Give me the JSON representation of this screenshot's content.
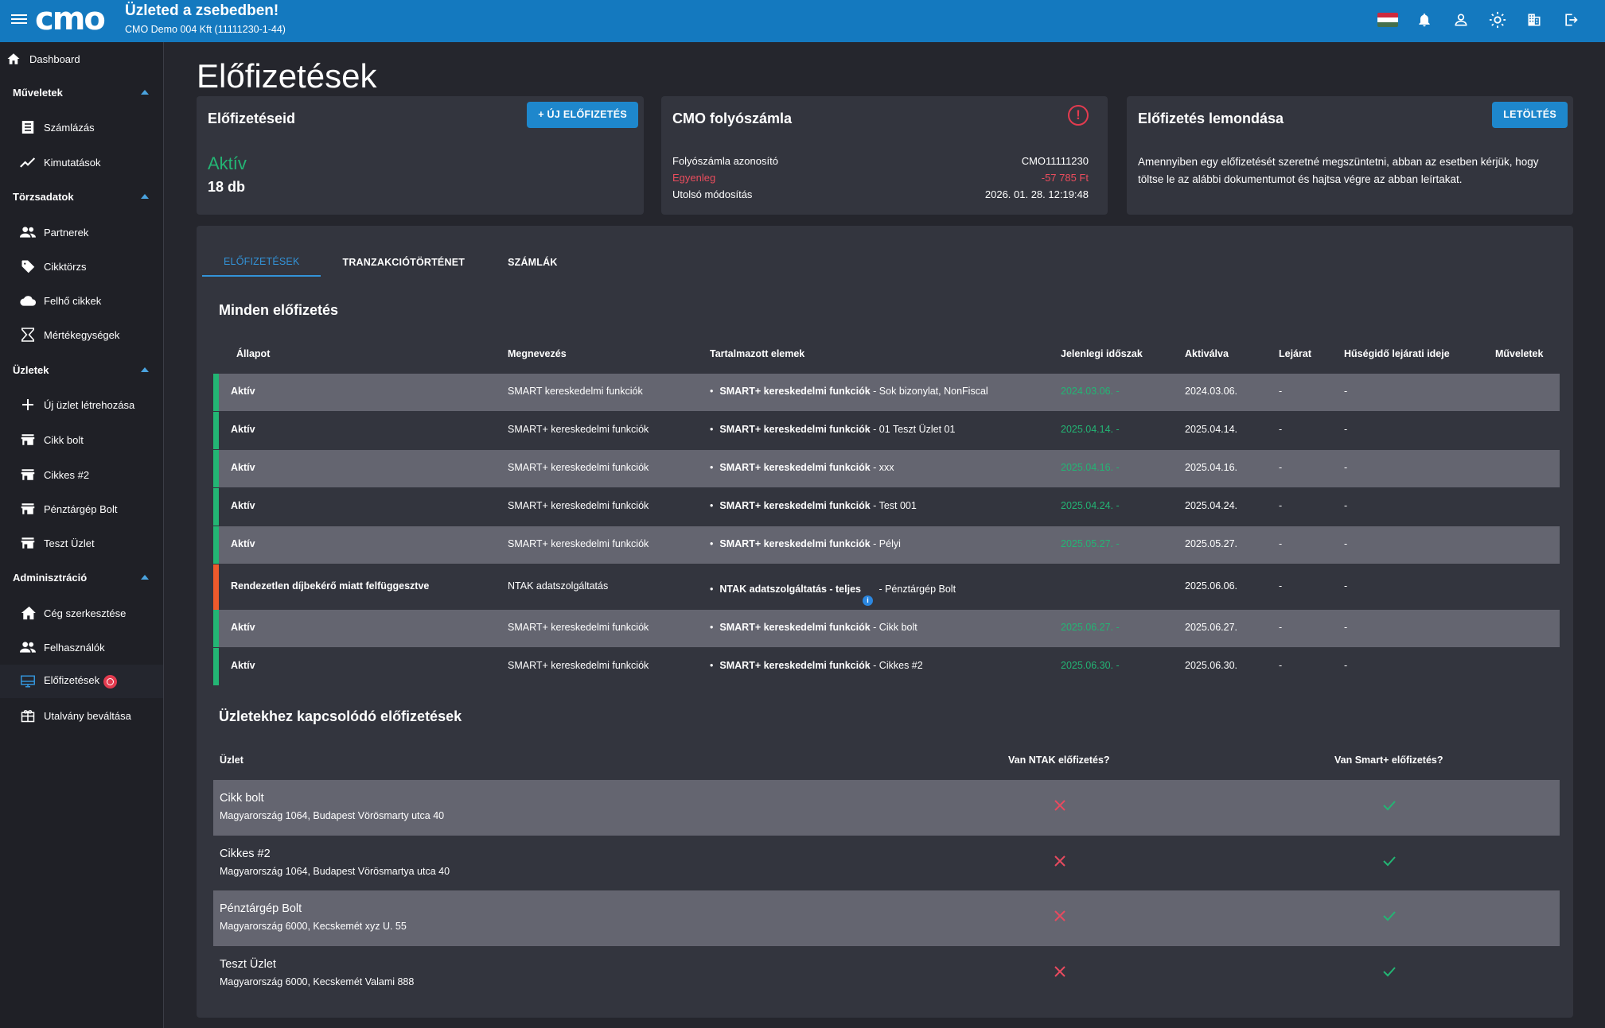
{
  "topbar": {
    "logo": "cmo",
    "title": "Üzleted a zsebedben!",
    "subtitle": "CMO Demo 004 Kft (11111230-1-44)"
  },
  "sidebar": {
    "dashboard": "Dashboard",
    "sections": [
      {
        "label": "Műveletek",
        "items": [
          "Számlázás",
          "Kimutatások"
        ]
      },
      {
        "label": "Törzsadatok",
        "items": [
          "Partnerek",
          "Cikktörzs",
          "Felhő cikkek",
          "Mértékegységek"
        ]
      },
      {
        "label": "Üzletek",
        "items": [
          "Új üzlet létrehozása",
          "Cikk bolt",
          "Cikkes #2",
          "Pénztárgép Bolt",
          "Teszt Üzlet"
        ]
      },
      {
        "label": "Adminisztráció",
        "items": [
          "Cég szerkesztése",
          "Felhasználók",
          "Előfizetések",
          "Utalvány beváltása"
        ]
      }
    ]
  },
  "page": {
    "title": "Előfizetések"
  },
  "cards": {
    "subscriptions": {
      "title": "Előfizetéseid",
      "button": "+ ÚJ ELŐFIZETÉS",
      "status": "Aktív",
      "count": "18 db"
    },
    "account": {
      "title": "CMO folyószámla",
      "warning": "!",
      "id_label": "Folyószámla azonosító",
      "id_value": "CMO11111230",
      "balance_label": "Egyenleg",
      "balance_value": "-57 785 Ft",
      "modified_label": "Utolsó módosítás",
      "modified_value": "2026. 01. 28. 12:19:48"
    },
    "cancel": {
      "title": "Előfizetés lemondása",
      "button": "LETÖLTÉS",
      "text": "Amennyiben egy előfizetését szeretné megszüntetni, abban az esetben kérjük, hogy töltse le az alábbi dokumentumot és hajtsa végre az abban leírtakat."
    }
  },
  "tabs": [
    "ELŐFIZETÉSEK",
    "TRANZAKCIÓTÖRTÉNET",
    "SZÁMLÁK"
  ],
  "subscriptions_table": {
    "title": "Minden előfizetés",
    "headers": [
      "Állapot",
      "Megnevezés",
      "Tartalmazott elemek",
      "Jelenlegi időszak",
      "Aktiválva",
      "Lejárat",
      "Hűségidő lejárati ideje",
      "Műveletek"
    ],
    "rows": [
      {
        "status": "Aktív",
        "name": "SMART kereskedelmi funkciók",
        "elem_bold": "SMART+ kereskedelmi funkciók",
        "elem_rest": " - Sok bizonylat, NonFiscal",
        "period": "2024.03.06. -",
        "activated": "2024.03.06.",
        "expiry": "-",
        "loyalty": "-"
      },
      {
        "status": "Aktív",
        "name": "SMART+ kereskedelmi funkciók",
        "elem_bold": "SMART+ kereskedelmi funkciók",
        "elem_rest": " - 01 Teszt Üzlet 01",
        "period": "2025.04.14. -",
        "activated": "2025.04.14.",
        "expiry": "-",
        "loyalty": "-"
      },
      {
        "status": "Aktív",
        "name": "SMART+ kereskedelmi funkciók",
        "elem_bold": "SMART+ kereskedelmi funkciók",
        "elem_rest": " - xxx",
        "period": "2025.04.16. -",
        "activated": "2025.04.16.",
        "expiry": "-",
        "loyalty": "-"
      },
      {
        "status": "Aktív",
        "name": "SMART+ kereskedelmi funkciók",
        "elem_bold": "SMART+ kereskedelmi funkciók",
        "elem_rest": " - Test 001",
        "period": "2025.04.24. -",
        "activated": "2025.04.24.",
        "expiry": "-",
        "loyalty": "-"
      },
      {
        "status": "Aktív",
        "name": "SMART+ kereskedelmi funkciók",
        "elem_bold": "SMART+ kereskedelmi funkciók",
        "elem_rest": " - Pélyi",
        "period": "2025.05.27. -",
        "activated": "2025.05.27.",
        "expiry": "-",
        "loyalty": "-"
      },
      {
        "status": "Rendezetlen díjbekérő miatt felfüggesztve",
        "name": "NTAK adatszolgáltatás",
        "elem_bold": "NTAK adatszolgáltatás - teljes",
        "elem_rest": " - Pénztárgép Bolt",
        "period": "",
        "activated": "2025.06.06.",
        "expiry": "-",
        "loyalty": "-"
      },
      {
        "status": "Aktív",
        "name": "SMART+ kereskedelmi funkciók",
        "elem_bold": "SMART+ kereskedelmi funkciók",
        "elem_rest": " - Cikk bolt",
        "period": "2025.06.27. -",
        "activated": "2025.06.27.",
        "expiry": "-",
        "loyalty": "-"
      },
      {
        "status": "Aktív",
        "name": "SMART+ kereskedelmi funkciók",
        "elem_bold": "SMART+ kereskedelmi funkciók",
        "elem_rest": " - Cikkes #2",
        "period": "2025.06.30. -",
        "activated": "2025.06.30.",
        "expiry": "-",
        "loyalty": "-"
      }
    ]
  },
  "stores_table": {
    "title": "Üzletekhez kapcsolódó előfizetések",
    "headers": [
      "Üzlet",
      "Van NTAK előfizetés?",
      "Van Smart+ előfizetés?"
    ],
    "rows": [
      {
        "name": "Cikk bolt",
        "address": "Magyarország 1064, Budapest Vörösmarty utca 40"
      },
      {
        "name": "Cikkes #2",
        "address": "Magyarország 1064, Budapest Vörösmartya utca 40"
      },
      {
        "name": "Pénztárgép Bolt",
        "address": "Magyarország 6000, Kecskemét xyz U. 55"
      },
      {
        "name": "Teszt Üzlet",
        "address": "Magyarország 6000, Kecskemét Valami 888"
      }
    ]
  },
  "colors": {
    "topbar": "#1479bf",
    "active_green": "#23b574",
    "suspended_orange": "#ee5a2c",
    "negative_red": "#ea4d5d",
    "accent_blue": "#3393d8"
  }
}
